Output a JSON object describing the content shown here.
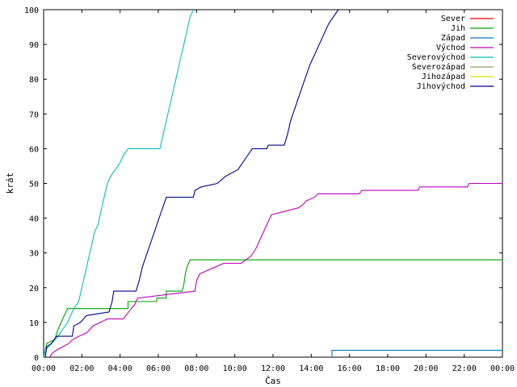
{
  "chart_data": {
    "type": "line",
    "xlabel": "Čas",
    "ylabel": "krát",
    "xlim": [
      "00:00",
      "24:00"
    ],
    "ylim": [
      0,
      100
    ],
    "x_ticks": [
      "00:00",
      "02:00",
      "04:00",
      "06:00",
      "08:00",
      "10:00",
      "12:00",
      "14:00",
      "16:00",
      "18:00",
      "20:00",
      "22:00",
      "00:00"
    ],
    "y_ticks": [
      0,
      10,
      20,
      30,
      40,
      50,
      60,
      70,
      80,
      90,
      100
    ],
    "grid": false,
    "legend_position": "top-right",
    "series": [
      {
        "name": "Sever",
        "color": "#ff0000",
        "points": []
      },
      {
        "name": "Jih",
        "color": "#00a000",
        "points": [
          [
            "00:00",
            0
          ],
          [
            "00:05",
            2
          ],
          [
            "00:10",
            4
          ],
          [
            "00:35",
            5
          ],
          [
            "00:45",
            8
          ],
          [
            "00:55",
            10
          ],
          [
            "01:05",
            12
          ],
          [
            "01:15",
            14
          ],
          [
            "04:25",
            14
          ],
          [
            "04:25",
            16
          ],
          [
            "05:55",
            16
          ],
          [
            "05:55",
            17
          ],
          [
            "06:25",
            17
          ],
          [
            "06:25",
            19
          ],
          [
            "07:15",
            19
          ],
          [
            "07:20",
            21
          ],
          [
            "07:25",
            24
          ],
          [
            "07:30",
            26
          ],
          [
            "07:35",
            27
          ],
          [
            "07:40",
            28
          ],
          [
            "24:00",
            28
          ]
        ]
      },
      {
        "name": "Západ",
        "color": "#0080c0",
        "points": [
          [
            "15:05",
            0
          ],
          [
            "15:05",
            2
          ],
          [
            "24:00",
            2
          ]
        ]
      },
      {
        "name": "Východ",
        "color": "#c000c0",
        "points": [
          [
            "00:20",
            0
          ],
          [
            "00:25",
            1
          ],
          [
            "00:40",
            2
          ],
          [
            "01:00",
            3
          ],
          [
            "01:20",
            4
          ],
          [
            "01:30",
            5
          ],
          [
            "01:50",
            6
          ],
          [
            "02:15",
            7
          ],
          [
            "02:35",
            9
          ],
          [
            "03:20",
            11
          ],
          [
            "04:10",
            11
          ],
          [
            "04:35",
            14
          ],
          [
            "04:45",
            15
          ],
          [
            "04:55",
            17
          ],
          [
            "07:55",
            19
          ],
          [
            "08:00",
            22
          ],
          [
            "08:10",
            24
          ],
          [
            "09:25",
            27
          ],
          [
            "10:00",
            27
          ],
          [
            "10:20",
            27
          ],
          [
            "10:50",
            29
          ],
          [
            "11:05",
            31
          ],
          [
            "11:15",
            33
          ],
          [
            "11:25",
            35
          ],
          [
            "11:35",
            37
          ],
          [
            "11:45",
            39
          ],
          [
            "11:55",
            41
          ],
          [
            "13:20",
            43
          ],
          [
            "13:35",
            44
          ],
          [
            "13:45",
            45
          ],
          [
            "14:10",
            46
          ],
          [
            "14:20",
            47
          ],
          [
            "16:30",
            47
          ],
          [
            "16:40",
            48
          ],
          [
            "19:35",
            48
          ],
          [
            "19:40",
            49
          ],
          [
            "22:10",
            49
          ],
          [
            "22:15",
            50
          ],
          [
            "24:00",
            50
          ]
        ]
      },
      {
        "name": "Severovýchod",
        "color": "#00c0c0",
        "points": [
          [
            "00:00",
            0
          ],
          [
            "00:05",
            2
          ],
          [
            "00:25",
            4
          ],
          [
            "00:45",
            6
          ],
          [
            "01:00",
            8
          ],
          [
            "01:15",
            10
          ],
          [
            "01:25",
            12
          ],
          [
            "01:35",
            14
          ],
          [
            "01:50",
            16
          ],
          [
            "02:00",
            20
          ],
          [
            "02:10",
            24
          ],
          [
            "02:20",
            28
          ],
          [
            "02:30",
            32
          ],
          [
            "02:40",
            36
          ],
          [
            "02:50",
            38
          ],
          [
            "03:00",
            42
          ],
          [
            "03:10",
            46
          ],
          [
            "03:20",
            50
          ],
          [
            "03:30",
            52
          ],
          [
            "03:45",
            54
          ],
          [
            "04:00",
            56
          ],
          [
            "04:10",
            58
          ],
          [
            "04:25",
            60
          ],
          [
            "06:05",
            60
          ],
          [
            "06:10",
            62
          ],
          [
            "06:20",
            66
          ],
          [
            "06:30",
            70
          ],
          [
            "06:40",
            74
          ],
          [
            "06:50",
            78
          ],
          [
            "07:00",
            82
          ],
          [
            "07:10",
            86
          ],
          [
            "07:20",
            90
          ],
          [
            "07:30",
            94
          ],
          [
            "07:40",
            98
          ],
          [
            "07:50",
            100
          ]
        ]
      },
      {
        "name": "Severozápad",
        "color": "#a0a060",
        "points": []
      },
      {
        "name": "Jihozápad",
        "color": "#e0e000",
        "points": []
      },
      {
        "name": "Jihovýchod",
        "color": "#00008b",
        "points": [
          [
            "00:05",
            0
          ],
          [
            "00:10",
            3
          ],
          [
            "00:25",
            4
          ],
          [
            "00:40",
            6
          ],
          [
            "01:30",
            6
          ],
          [
            "01:35",
            9
          ],
          [
            "01:55",
            10
          ],
          [
            "02:15",
            12
          ],
          [
            "03:25",
            13
          ],
          [
            "03:35",
            16
          ],
          [
            "03:40",
            19
          ],
          [
            "04:50",
            19
          ],
          [
            "05:00",
            22
          ],
          [
            "05:10",
            26
          ],
          [
            "05:25",
            30
          ],
          [
            "05:40",
            34
          ],
          [
            "05:55",
            38
          ],
          [
            "06:10",
            42
          ],
          [
            "06:25",
            46
          ],
          [
            "07:50",
            46
          ],
          [
            "07:55",
            48
          ],
          [
            "08:15",
            49
          ],
          [
            "09:05",
            50
          ],
          [
            "09:30",
            52
          ],
          [
            "10:10",
            54
          ],
          [
            "10:25",
            56
          ],
          [
            "10:40",
            58
          ],
          [
            "10:55",
            60
          ],
          [
            "11:40",
            60
          ],
          [
            "11:45",
            61
          ],
          [
            "12:35",
            61
          ],
          [
            "12:45",
            64
          ],
          [
            "12:55",
            68
          ],
          [
            "13:10",
            72
          ],
          [
            "13:25",
            76
          ],
          [
            "13:40",
            80
          ],
          [
            "13:55",
            84
          ],
          [
            "14:15",
            88
          ],
          [
            "14:35",
            92
          ],
          [
            "14:55",
            96
          ],
          [
            "15:10",
            98
          ],
          [
            "15:25",
            100
          ]
        ]
      }
    ]
  }
}
